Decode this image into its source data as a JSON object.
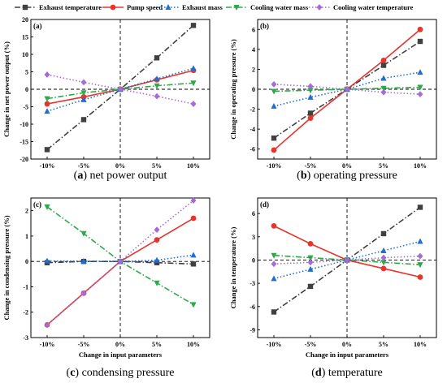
{
  "legend": {
    "items": [
      {
        "name": "Exhaust temperature",
        "color": "#404040",
        "marker": "square",
        "dash": "dashdot"
      },
      {
        "name": "Pump speed",
        "color": "#e8342c",
        "marker": "circle",
        "dash": "solid"
      },
      {
        "name": "Exhaust mass",
        "color": "#1f6fd1",
        "marker": "triangle-up",
        "dash": "dot"
      },
      {
        "name": "Cooling water mass",
        "color": "#2ea84a",
        "marker": "triangle-down",
        "dash": "dashdot"
      },
      {
        "name": "Cooling water temperature",
        "color": "#a66bd6",
        "marker": "diamond",
        "dash": "dot"
      }
    ]
  },
  "captions": [
    {
      "letter": "a",
      "text": "net power output"
    },
    {
      "letter": "b",
      "text": "operating pressure"
    },
    {
      "letter": "c",
      "text": "condensing pressure"
    },
    {
      "letter": "d",
      "text": "temperature"
    }
  ],
  "chart_data": [
    {
      "type": "line",
      "panel_label": "(a)",
      "categories": [
        "-10%",
        "-5%",
        "0%",
        "5%",
        "10%"
      ],
      "ylabel": "Change in net power output (%)",
      "xlabel": "",
      "ylim": [
        -20,
        20
      ],
      "yticks": [
        -20,
        -15,
        -10,
        -5,
        0,
        5,
        10,
        15,
        20
      ],
      "series": [
        {
          "name": "Exhaust temperature",
          "values": [
            -17.3,
            -8.7,
            0,
            9.0,
            18.3
          ]
        },
        {
          "name": "Pump speed",
          "values": [
            -4.2,
            -2.2,
            0,
            2.7,
            5.4
          ]
        },
        {
          "name": "Exhaust mass",
          "values": [
            -6.3,
            -3.0,
            0,
            3.0,
            6.0
          ]
        },
        {
          "name": "Cooling water mass",
          "values": [
            -2.7,
            -1.0,
            0,
            1.0,
            1.8
          ]
        },
        {
          "name": "Cooling water temperature",
          "values": [
            4.2,
            2.0,
            0,
            -2.0,
            -4.2
          ]
        }
      ]
    },
    {
      "type": "line",
      "panel_label": "(b)",
      "categories": [
        "-10%",
        "-5%",
        "0%",
        "5%",
        "10%"
      ],
      "ylabel": "Change in operating pressure (%)",
      "xlabel": "",
      "ylim": [
        -7,
        7
      ],
      "yticks": [
        -6,
        -4,
        -2,
        0,
        2,
        4,
        6
      ],
      "series": [
        {
          "name": "Exhaust temperature",
          "values": [
            -4.9,
            -2.4,
            0,
            2.4,
            4.8
          ]
        },
        {
          "name": "Pump speed",
          "values": [
            -6.1,
            -2.9,
            0,
            2.9,
            6.0
          ]
        },
        {
          "name": "Exhaust mass",
          "values": [
            -1.7,
            -0.8,
            0,
            1.1,
            1.7
          ]
        },
        {
          "name": "Cooling water mass",
          "values": [
            -0.2,
            -0.1,
            0,
            0.1,
            0.2
          ]
        },
        {
          "name": "Cooling water temperature",
          "values": [
            0.5,
            0.3,
            0,
            -0.3,
            -0.5
          ]
        }
      ]
    },
    {
      "type": "line",
      "panel_label": "(c)",
      "categories": [
        "-10%",
        "-5%",
        "0%",
        "5%",
        "10%"
      ],
      "ylabel": "Change in condensing pressure (%)",
      "xlabel": "Change in input parameters",
      "ylim": [
        -3,
        2.5
      ],
      "yticks": [
        -3,
        -2,
        -1,
        0,
        1,
        2
      ],
      "series": [
        {
          "name": "Exhaust temperature",
          "values": [
            -0.05,
            0.0,
            0,
            -0.05,
            -0.1
          ]
        },
        {
          "name": "Pump speed",
          "values": [
            -2.5,
            -1.25,
            0,
            0.85,
            1.7
          ]
        },
        {
          "name": "Exhaust mass",
          "values": [
            0.02,
            0.01,
            0,
            0.05,
            0.25
          ]
        },
        {
          "name": "Cooling water mass",
          "values": [
            2.15,
            1.1,
            0,
            -0.85,
            -1.7
          ]
        },
        {
          "name": "Cooling water temperature",
          "values": [
            -2.5,
            -1.25,
            0,
            1.25,
            2.4
          ]
        }
      ]
    },
    {
      "type": "line",
      "panel_label": "(d)",
      "categories": [
        "-10%",
        "-5%",
        "0%",
        "5%",
        "10%"
      ],
      "ylabel": "Change in temperature (%)",
      "xlabel": "Change in input parameters",
      "ylim": [
        -10,
        8
      ],
      "yticks": [
        -9,
        -6,
        -3,
        0,
        3,
        6
      ],
      "series": [
        {
          "name": "Exhaust temperature",
          "values": [
            -6.7,
            -3.4,
            0,
            3.4,
            6.8
          ]
        },
        {
          "name": "Pump speed",
          "values": [
            4.4,
            2.1,
            0,
            -1.1,
            -2.2
          ]
        },
        {
          "name": "Exhaust mass",
          "values": [
            -2.4,
            -1.2,
            0,
            1.2,
            2.4
          ]
        },
        {
          "name": "Cooling water mass",
          "values": [
            0.6,
            0.3,
            0,
            -0.3,
            -0.6
          ]
        },
        {
          "name": "Cooling water temperature",
          "values": [
            -0.5,
            -0.3,
            0,
            0.3,
            0.5
          ]
        }
      ]
    }
  ]
}
